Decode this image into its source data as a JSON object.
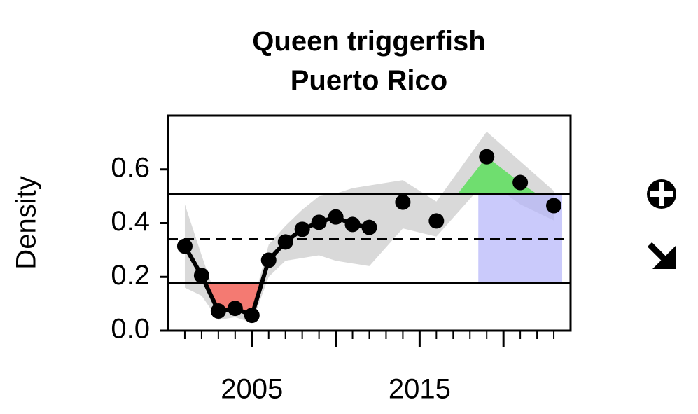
{
  "chart_data": {
    "type": "indicator",
    "title": [
      "Queen triggerfish",
      "Puerto Rico"
    ],
    "y_label": "Density",
    "x": [
      2001,
      2002,
      2003,
      2004,
      2005,
      2006,
      2007,
      2008,
      2009,
      2010,
      2011,
      2012,
      2013,
      2014,
      2015,
      2016,
      2017,
      2018,
      2019,
      2020,
      2021,
      2022,
      2023
    ],
    "values": [
      0.314,
      0.205,
      0.073,
      0.083,
      0.057,
      0.262,
      0.33,
      0.377,
      0.403,
      0.423,
      0.395,
      0.384,
      null,
      0.478,
      null,
      0.408,
      null,
      null,
      0.647,
      null,
      0.551,
      null,
      0.465
    ],
    "band_upper": [
      0.47,
      0.28,
      0.1,
      0.1,
      0.09,
      0.32,
      0.39,
      0.45,
      0.5,
      0.51,
      0.53,
      0.54,
      null,
      0.56,
      null,
      0.48,
      null,
      null,
      0.74,
      null,
      0.63,
      null,
      0.52
    ],
    "band_lower": [
      0.16,
      0.13,
      0.04,
      0.05,
      0.03,
      0.2,
      0.26,
      0.27,
      0.28,
      0.26,
      0.25,
      0.24,
      null,
      0.38,
      null,
      0.35,
      null,
      null,
      0.56,
      null,
      0.47,
      null,
      0.41
    ],
    "mean": 0.34,
    "upper_limit": 0.509,
    "lower_limit": 0.177,
    "recent_window": [
      2018.5,
      2023.5
    ],
    "xlim": [
      2000,
      2024
    ],
    "ylim": [
      0,
      0.8
    ],
    "xticks": [
      2005,
      2015
    ],
    "xticks_unlabeled": [
      2010,
      2020
    ],
    "xminor_ticks": [
      2001,
      2002,
      2003,
      2004,
      2006,
      2007,
      2008,
      2009,
      2011,
      2012,
      2013,
      2014,
      2016,
      2017,
      2018,
      2019,
      2021,
      2022,
      2023
    ],
    "yticks": [
      {
        "value": 0,
        "label": "0.0"
      },
      0.2,
      0.4,
      0.6
    ],
    "color": "#000000",
    "band_color": "#d9d9d9",
    "below_color": "#f47a72",
    "above_color": "#6fde6f",
    "window_color": "#b4b4fa"
  }
}
